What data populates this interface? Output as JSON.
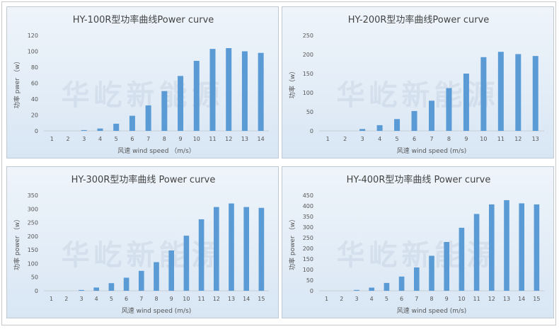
{
  "watermark": "华屹新能源",
  "chart_data": [
    {
      "type": "bar",
      "title": "HY-100R型功率曲线Power curve",
      "xlabel": "风速 wind speed （m/s）",
      "ylabel": "功率 pwer （w）",
      "categories": [
        "1",
        "2",
        "3",
        "4",
        "5",
        "6",
        "7",
        "8",
        "9",
        "10",
        "11",
        "12",
        "13",
        "14"
      ],
      "values": [
        0,
        0,
        1,
        3,
        9,
        19,
        32,
        50,
        69,
        88,
        103,
        104,
        100,
        98
      ],
      "ylim": [
        0,
        120
      ],
      "yticks": [
        0,
        20,
        40,
        60,
        80,
        100,
        120
      ],
      "grid": false,
      "color": "#5b9bd5"
    },
    {
      "type": "bar",
      "title": "HY-200R型功率曲线Power curve",
      "xlabel": "风速 wind speed (m/s)",
      "ylabel": "功率（w）",
      "categories": [
        "1",
        "2",
        "3",
        "4",
        "5",
        "6",
        "7",
        "8",
        "9",
        "10",
        "11",
        "12",
        "13"
      ],
      "values": [
        0,
        0,
        5,
        15,
        31,
        52,
        79,
        112,
        150,
        193,
        207,
        201,
        196
      ],
      "ylim": [
        0,
        250
      ],
      "yticks": [
        0,
        50,
        100,
        150,
        200,
        250
      ],
      "grid": false,
      "color": "#5b9bd5"
    },
    {
      "type": "bar",
      "title": "HY-300R型功率曲线 Power curve",
      "xlabel": "风速 wind speed (m/s)",
      "ylabel": "功率 power （w）",
      "categories": [
        "1",
        "2",
        "3",
        "4",
        "5",
        "6",
        "7",
        "8",
        "9",
        "10",
        "11",
        "12",
        "13",
        "14",
        "15"
      ],
      "values": [
        0,
        0,
        3,
        12,
        28,
        48,
        73,
        105,
        148,
        202,
        262,
        307,
        320,
        307,
        304
      ],
      "ylim": [
        0,
        350
      ],
      "yticks": [
        0,
        50,
        100,
        150,
        200,
        250,
        300,
        350
      ],
      "grid": false,
      "color": "#5b9bd5"
    },
    {
      "type": "bar",
      "title": "HY-400R型功率曲线 Power curve",
      "xlabel": "风速 wind speed (m/s)",
      "ylabel": "功率 power （w）",
      "categories": [
        "1",
        "2",
        "3",
        "4",
        "5",
        "6",
        "7",
        "8",
        "9",
        "10",
        "11",
        "12",
        "13",
        "14",
        "15"
      ],
      "values": [
        0,
        0,
        4,
        15,
        37,
        67,
        110,
        165,
        230,
        297,
        362,
        407,
        427,
        412,
        407
      ],
      "ylim": [
        0,
        450
      ],
      "yticks": [
        0,
        50,
        100,
        150,
        200,
        250,
        300,
        350,
        400,
        450
      ],
      "grid": false,
      "color": "#5b9bd5"
    }
  ]
}
